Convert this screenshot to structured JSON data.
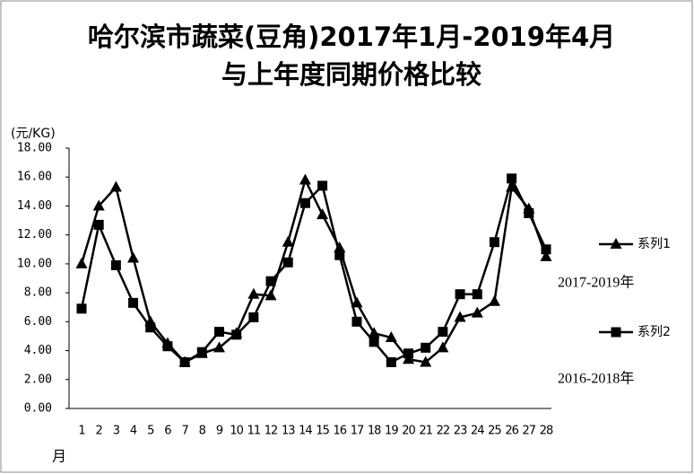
{
  "chart_data": {
    "type": "line",
    "title": "哈尔滨市蔬菜(豆角)2017年1月-2019年4月与上年度同期价格比较",
    "y_label": "(元/KG)",
    "x_label": "月",
    "annotations": [
      "2017-2019年",
      "2016-2018年"
    ],
    "categories": [
      "1",
      "2",
      "3",
      "4",
      "5",
      "6",
      "7",
      "8",
      "9",
      "10",
      "11",
      "12",
      "13",
      "14",
      "15",
      "16",
      "17",
      "18",
      "19",
      "20",
      "21",
      "22",
      "23",
      "24",
      "25",
      "26",
      "27",
      "28"
    ],
    "series": [
      {
        "name": "系列1",
        "color": "#000000",
        "marker": "triangle",
        "values": [
          10.0,
          14.0,
          15.3,
          10.4,
          6.0,
          4.5,
          3.2,
          3.8,
          4.2,
          5.2,
          7.9,
          7.8,
          11.5,
          15.8,
          13.4,
          11.1,
          7.3,
          5.2,
          4.9,
          3.4,
          3.2,
          4.2,
          6.3,
          6.6,
          7.4,
          15.3,
          13.8,
          10.5
        ]
      },
      {
        "name": "系列2",
        "color": "#000000",
        "marker": "square",
        "values": [
          6.9,
          12.7,
          9.9,
          7.3,
          5.6,
          4.3,
          3.2,
          3.9,
          5.3,
          5.1,
          6.3,
          8.8,
          10.1,
          14.2,
          15.4,
          10.6,
          6.0,
          4.6,
          3.2,
          3.8,
          4.2,
          5.3,
          7.9,
          7.9,
          11.5,
          15.9,
          13.5,
          11.0
        ]
      }
    ],
    "ylim": [
      0,
      18
    ],
    "yticks": [
      {
        "value": 0,
        "label": "0.00"
      },
      {
        "value": 2,
        "label": "2.00"
      },
      {
        "value": 4,
        "label": "4.00"
      },
      {
        "value": 6,
        "label": "6.00"
      },
      {
        "value": 8,
        "label": "8.00"
      },
      {
        "value": 10,
        "label": "10.00"
      },
      {
        "value": 12,
        "label": "12.00"
      },
      {
        "value": 14,
        "label": "14.00"
      },
      {
        "value": 16,
        "label": "16.00"
      },
      {
        "value": 18,
        "label": "18.00"
      }
    ],
    "grid": false,
    "legend": "right"
  }
}
